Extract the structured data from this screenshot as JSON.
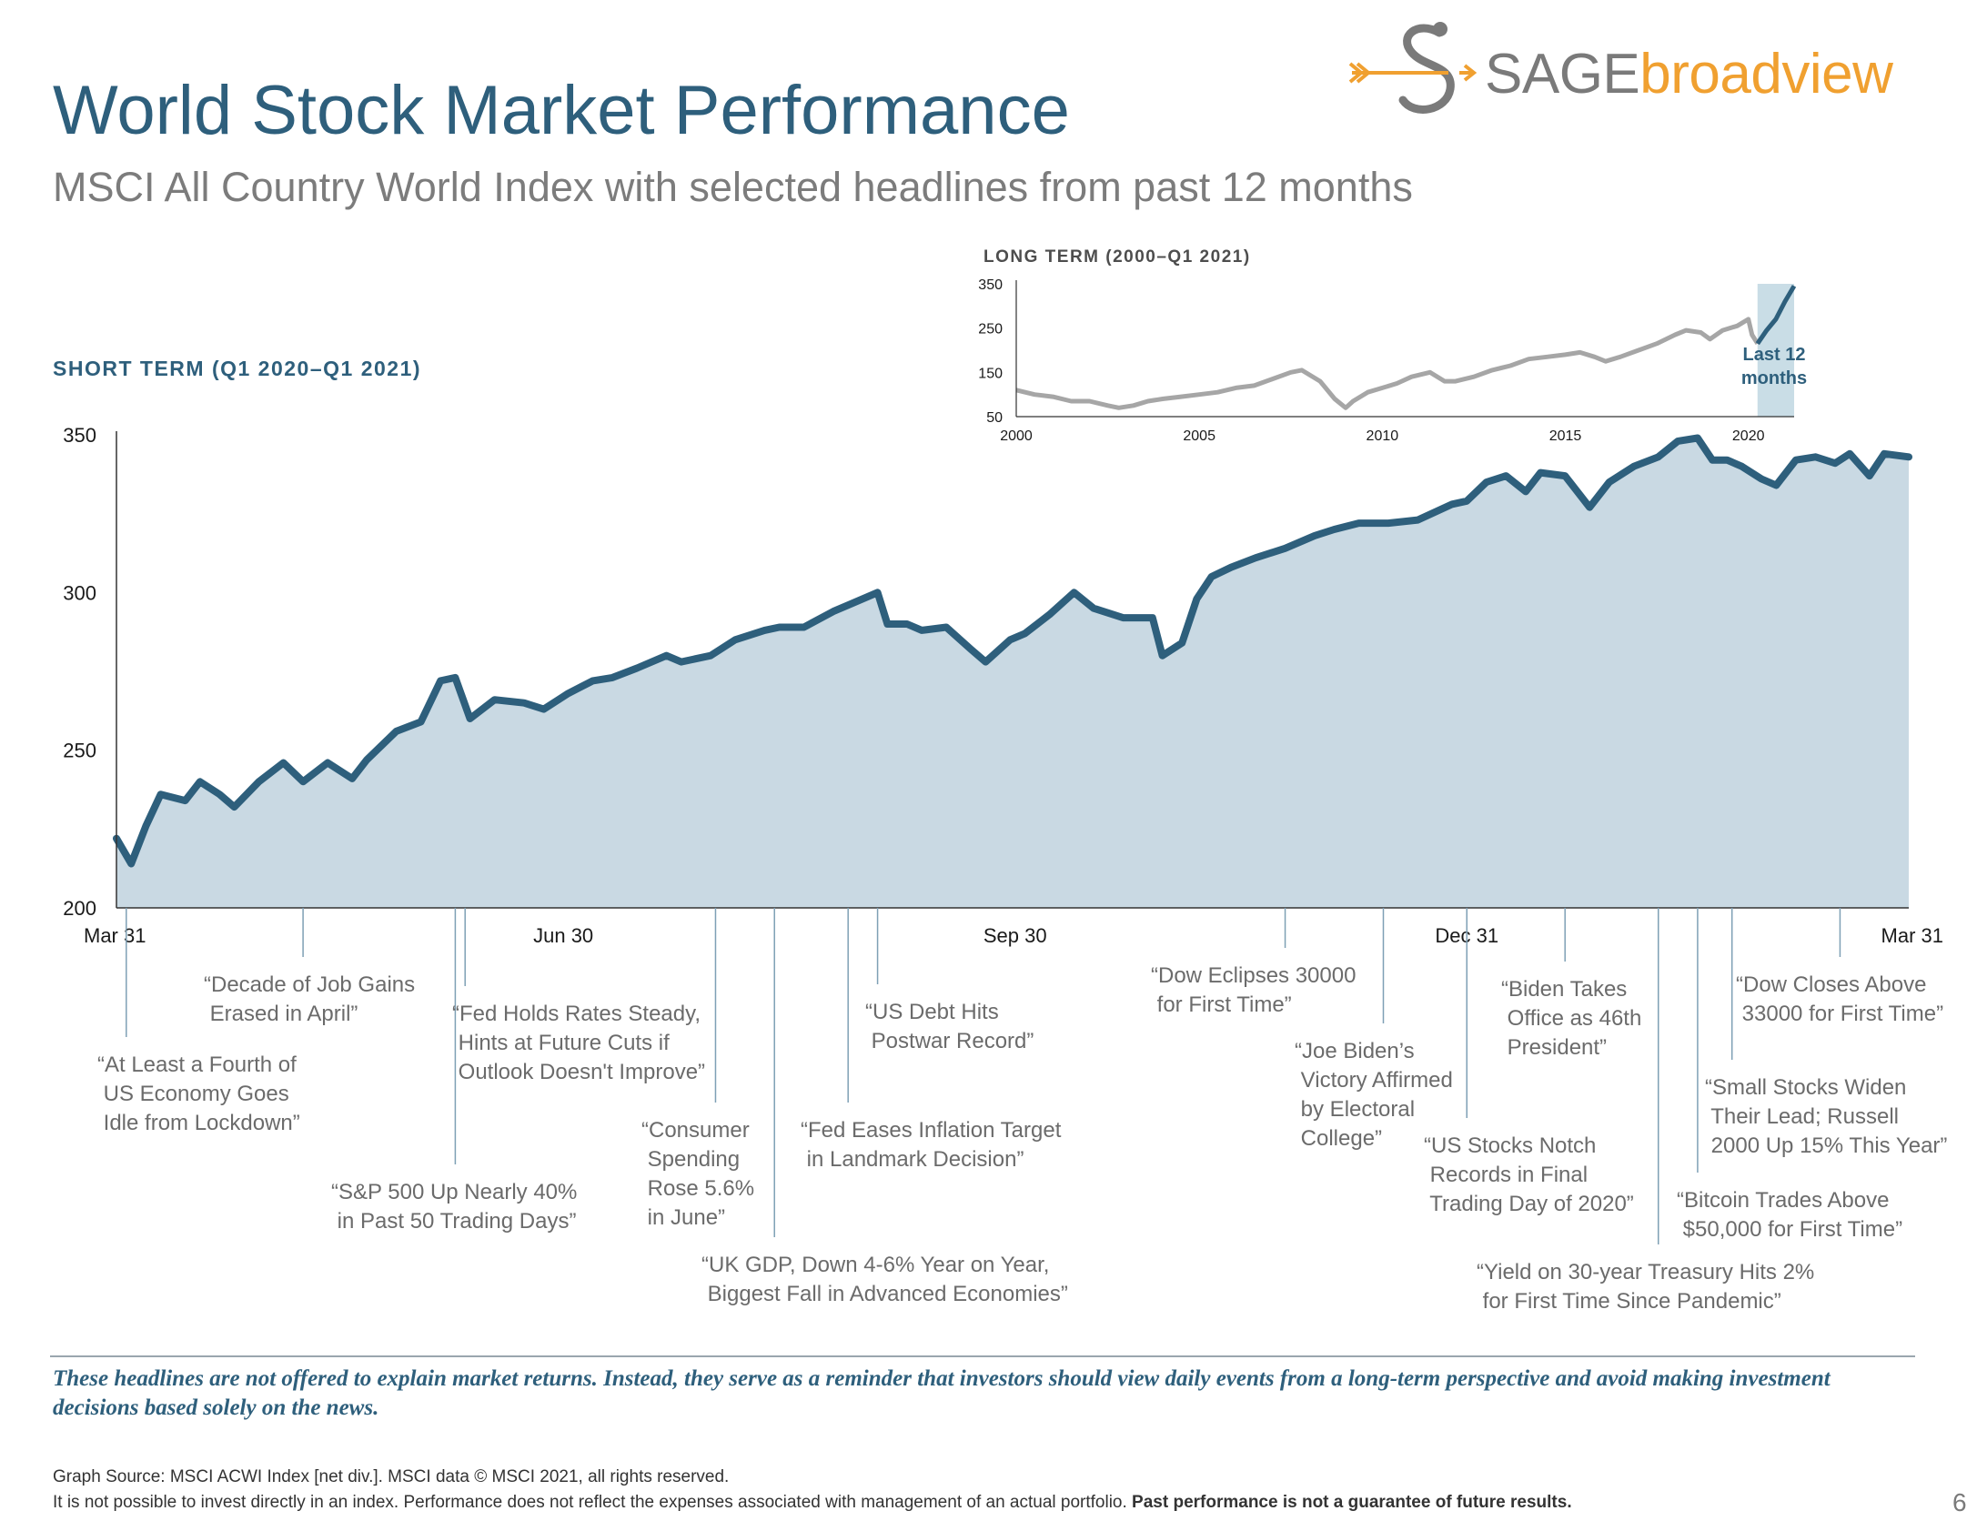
{
  "title": "World Stock Market Performance",
  "subtitle": "MSCI All Country World Index with selected headlines from past 12 months",
  "logo": {
    "part1": "SAGE",
    "part2": "broadview",
    "color_gray": "#7a7a7a",
    "color_orange": "#f0a030"
  },
  "colors": {
    "primary": "#2e5f7c",
    "area_fill": "#c9d9e3",
    "line": "#2e5f7c",
    "inset_gray": "#a6a6a6",
    "inset_highlight": "#c9dde6",
    "headline_text": "#6b6b6b",
    "leader_line": "#7ea0b5"
  },
  "short_term_label": "SHORT TERM (Q1 2020–Q1 2021)",
  "long_term_label": "LONG TERM (2000–Q1 2021)",
  "inset_annotation": [
    "Last 12",
    "months"
  ],
  "headlines": [
    {
      "lines": [
        "“At Least a Fourth of",
        " US Economy Goes",
        " Idle from Lockdown”"
      ],
      "date": "2020-04-02"
    },
    {
      "lines": [
        "“Decade of Job Gains",
        " Erased in April”"
      ],
      "date": "2020-05-08"
    },
    {
      "lines": [
        "“S&P 500 Up Nearly 40%",
        " in Past 50 Trading Days”"
      ],
      "date": "2020-06-08"
    },
    {
      "lines": [
        "“Fed Holds Rates Steady,",
        " Hints at Future Cuts if",
        " Outlook Doesn't Improve”"
      ],
      "date": "2020-06-10"
    },
    {
      "lines": [
        "“Consumer",
        " Spending",
        " Rose 5.6%",
        " in June”"
      ],
      "date": "2020-07-31"
    },
    {
      "lines": [
        "“UK GDP, Down 4-6% Year on Year,",
        " Biggest Fall in Advanced Economies”"
      ],
      "date": "2020-08-12"
    },
    {
      "lines": [
        "“Fed Eases Inflation Target",
        " in Landmark Decision”"
      ],
      "date": "2020-08-27"
    },
    {
      "lines": [
        "“US Debt Hits",
        " Postwar Record”"
      ],
      "date": "2020-09-02"
    },
    {
      "lines": [
        "“Dow Eclipses 30000",
        " for First Time”"
      ],
      "date": "2020-11-24"
    },
    {
      "lines": [
        "“Joe Biden’s",
        " Victory Affirmed",
        " by Electoral",
        " College”"
      ],
      "date": "2020-12-14"
    },
    {
      "lines": [
        "“US Stocks Notch",
        " Records in Final",
        " Trading Day of 2020”"
      ],
      "date": "2020-12-31"
    },
    {
      "lines": [
        "“Biden Takes",
        " Office as 46th",
        " President”"
      ],
      "date": "2021-01-20"
    },
    {
      "lines": [
        "“Yield on 30-year Treasury Hits 2%",
        " for First Time Since Pandemic”"
      ],
      "date": "2021-02-08"
    },
    {
      "lines": [
        "“Bitcoin Trades Above",
        " $50,000 for First Time”"
      ],
      "date": "2021-02-16"
    },
    {
      "lines": [
        "“Small Stocks Widen",
        " Their Lead; Russell",
        " 2000 Up 15% This Year”"
      ],
      "date": "2021-02-23"
    },
    {
      "lines": [
        "“Dow Closes Above",
        " 33000 for First Time”"
      ],
      "date": "2021-03-17"
    }
  ],
  "disclaimer": "These headlines are not offered to explain market returns. Instead, they serve as a reminder that investors should view daily events from a long-term perspective and avoid making investment decisions based solely on the news.",
  "footnote_source": "Graph Source: MSCI ACWI Index [net div.]. MSCI data © MSCI 2021, all rights reserved.",
  "footnote_disclaimer_plain": "It is not possible to invest directly in an index. Performance does not reflect the expenses associated with management of an actual portfolio. ",
  "footnote_disclaimer_bold": "Past performance is not a guarantee of future results.",
  "page_number": "6",
  "chart_data": [
    {
      "type": "area",
      "title": "SHORT TERM (Q1 2020–Q1 2021)",
      "x_ticks": [
        "Mar 31",
        "Jun 30",
        "Sep 30",
        "Dec 31",
        "Mar 31"
      ],
      "x_tick_dates": [
        "2020-03-31",
        "2020-06-30",
        "2020-09-30",
        "2020-12-31",
        "2021-03-31"
      ],
      "y_ticks": [
        200,
        250,
        300,
        350
      ],
      "ylim": [
        200,
        350
      ],
      "xlim": [
        "2020-03-31",
        "2021-03-31"
      ],
      "grid": false,
      "series": [
        {
          "x": [
            "2020-03-31",
            "2020-04-03",
            "2020-04-06",
            "2020-04-09",
            "2020-04-14",
            "2020-04-17",
            "2020-04-21",
            "2020-04-24",
            "2020-04-29",
            "2020-05-04",
            "2020-05-08",
            "2020-05-13",
            "2020-05-18",
            "2020-05-21",
            "2020-05-27",
            "2020-06-01",
            "2020-06-05",
            "2020-06-08",
            "2020-06-11",
            "2020-06-16",
            "2020-06-22",
            "2020-06-26",
            "2020-07-01",
            "2020-07-06",
            "2020-07-10",
            "2020-07-15",
            "2020-07-21",
            "2020-07-24",
            "2020-07-30",
            "2020-08-04",
            "2020-08-10",
            "2020-08-13",
            "2020-08-18",
            "2020-08-24",
            "2020-08-27",
            "2020-09-02",
            "2020-09-04",
            "2020-09-08",
            "2020-09-11",
            "2020-09-16",
            "2020-09-21",
            "2020-09-24",
            "2020-09-29",
            "2020-10-02",
            "2020-10-07",
            "2020-10-12",
            "2020-10-16",
            "2020-10-22",
            "2020-10-28",
            "2020-10-30",
            "2020-11-03",
            "2020-11-06",
            "2020-11-09",
            "2020-11-13",
            "2020-11-18",
            "2020-11-24",
            "2020-11-30",
            "2020-12-04",
            "2020-12-09",
            "2020-12-15",
            "2020-12-21",
            "2020-12-28",
            "2020-12-31",
            "2021-01-04",
            "2021-01-08",
            "2021-01-12",
            "2021-01-15",
            "2021-01-20",
            "2021-01-25",
            "2021-01-29",
            "2021-02-03",
            "2021-02-08",
            "2021-02-12",
            "2021-02-16",
            "2021-02-19",
            "2021-02-22",
            "2021-02-25",
            "2021-03-01",
            "2021-03-04",
            "2021-03-08",
            "2021-03-12",
            "2021-03-16",
            "2021-03-19",
            "2021-03-23",
            "2021-03-26",
            "2021-03-31"
          ],
          "y": [
            222,
            214,
            226,
            236,
            234,
            240,
            236,
            232,
            240,
            246,
            240,
            246,
            241,
            247,
            256,
            259,
            272,
            273,
            260,
            266,
            265,
            263,
            268,
            272,
            273,
            276,
            280,
            278,
            280,
            285,
            288,
            289,
            289,
            294,
            296,
            300,
            290,
            290,
            288,
            289,
            282,
            278,
            285,
            287,
            293,
            300,
            295,
            292,
            292,
            280,
            284,
            298,
            305,
            308,
            311,
            314,
            318,
            320,
            322,
            322,
            323,
            328,
            329,
            335,
            337,
            332,
            338,
            337,
            327,
            335,
            340,
            343,
            348,
            349,
            342,
            342,
            340,
            336,
            334,
            342,
            343,
            341,
            344,
            337,
            344,
            343
          ]
        }
      ]
    },
    {
      "type": "line",
      "title": "LONG TERM (2000–Q1 2021)",
      "x_ticks": [
        2000,
        2005,
        2010,
        2015,
        2020
      ],
      "y_ticks": [
        50,
        150,
        250,
        350
      ],
      "xlim": [
        2000,
        2021.25
      ],
      "ylim": [
        50,
        350
      ],
      "highlight_range": [
        2020.25,
        2021.25
      ],
      "annotation": "Last 12 months",
      "series": [
        {
          "x": [
            2000.0,
            2000.5,
            2001.0,
            2001.5,
            2002.0,
            2002.5,
            2002.8,
            2003.2,
            2003.6,
            2004.0,
            2004.5,
            2005.0,
            2005.5,
            2006.0,
            2006.5,
            2007.0,
            2007.5,
            2007.8,
            2008.3,
            2008.7,
            2009.0,
            2009.2,
            2009.6,
            2010.0,
            2010.4,
            2010.8,
            2011.3,
            2011.7,
            2012.0,
            2012.5,
            2013.0,
            2013.5,
            2014.0,
            2014.5,
            2015.0,
            2015.4,
            2015.8,
            2016.1,
            2016.5,
            2017.0,
            2017.5,
            2018.0,
            2018.3,
            2018.7,
            2018.95,
            2019.3,
            2019.7,
            2020.0,
            2020.1,
            2020.25,
            2020.5,
            2020.75,
            2021.0,
            2021.25
          ],
          "y": [
            110,
            100,
            95,
            85,
            85,
            75,
            70,
            75,
            85,
            90,
            95,
            100,
            105,
            115,
            120,
            135,
            150,
            155,
            130,
            90,
            70,
            85,
            105,
            115,
            125,
            140,
            150,
            130,
            130,
            140,
            155,
            165,
            180,
            185,
            190,
            195,
            185,
            175,
            185,
            200,
            215,
            235,
            245,
            240,
            225,
            245,
            255,
            270,
            235,
            215,
            245,
            270,
            310,
            345
          ]
        }
      ]
    }
  ]
}
